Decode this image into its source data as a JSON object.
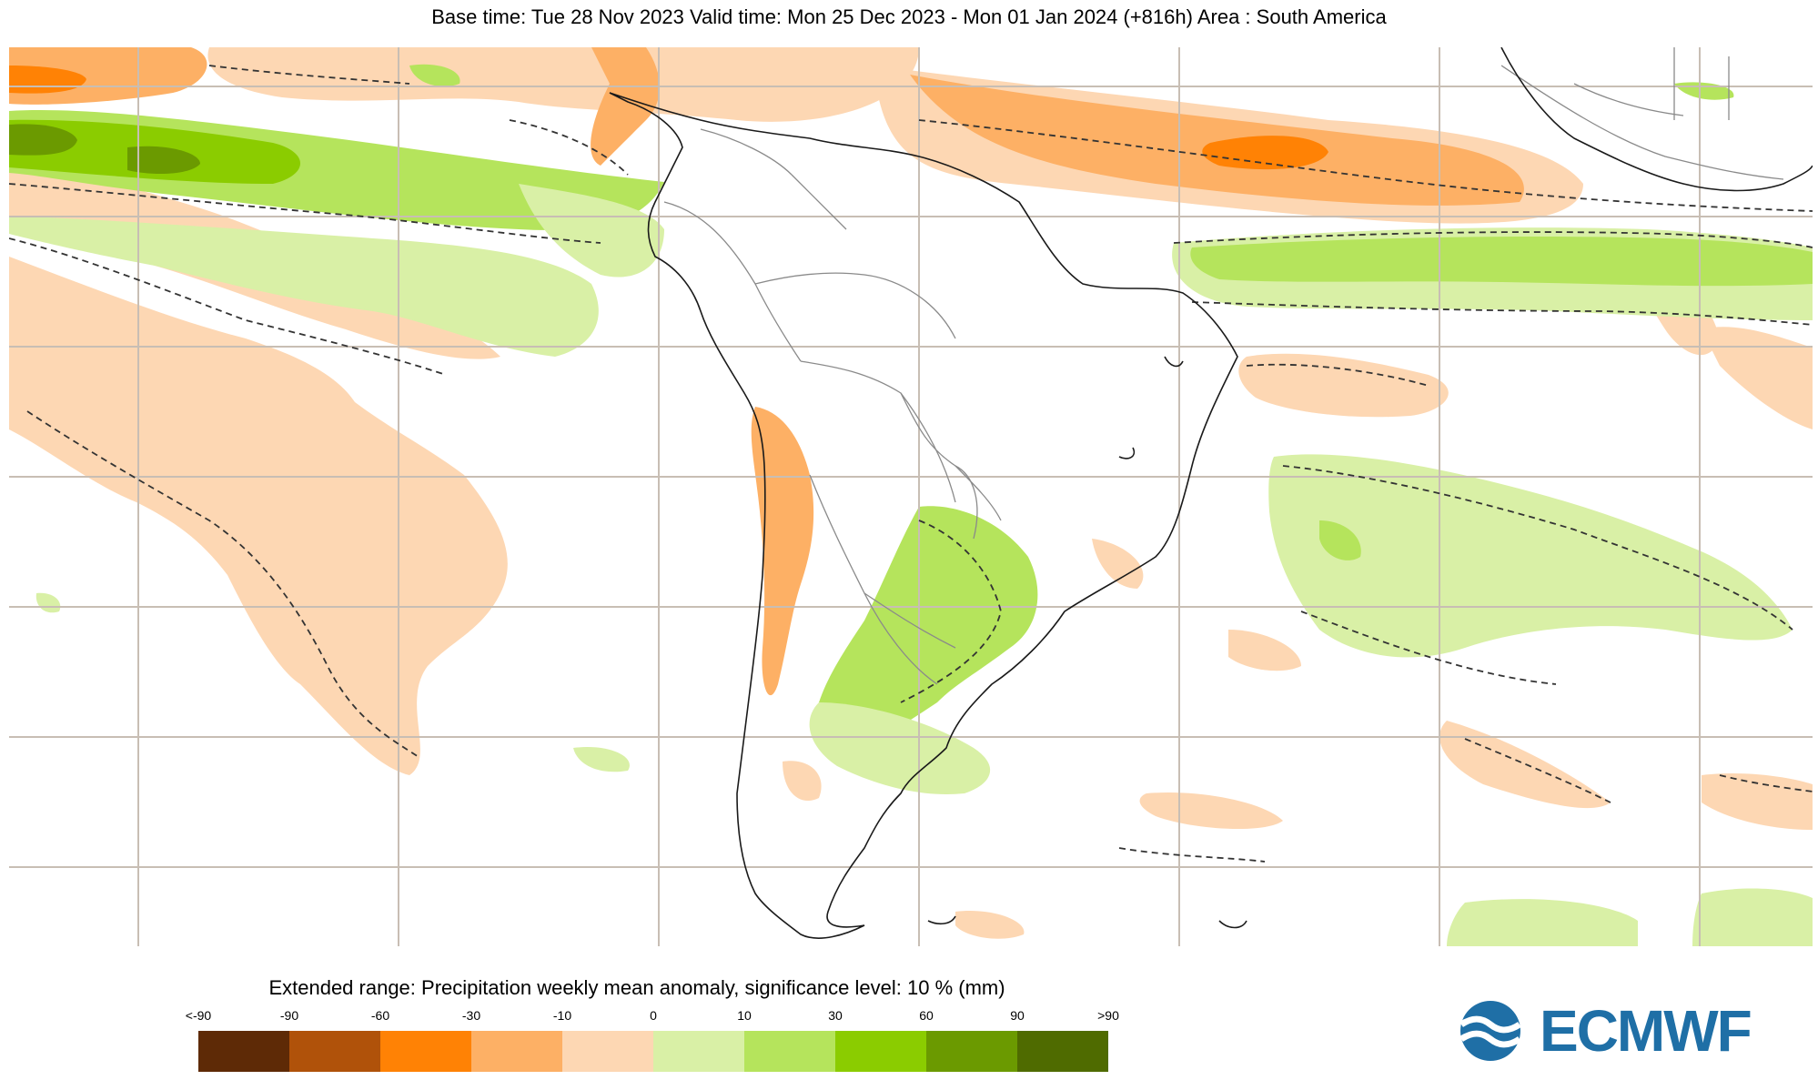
{
  "header": {
    "title": "Base time: Tue 28 Nov 2023 Valid time: Mon 25 Dec 2023 - Mon 01 Jan 2024 (+816h) Area : South America"
  },
  "map": {
    "region": "South America",
    "background_color": "#ffffff",
    "gridline_color": "#c8beb4",
    "coastline_color": "#1a1a1a",
    "border_color": "#8a8a8a",
    "significance_contour": "dashed",
    "has_gridlines": true
  },
  "legend": {
    "title": "Extended range: Precipitation weekly mean anomaly, significance level: 10 % (mm)",
    "tick_labels": [
      "<-90",
      "-90",
      "-60",
      "-30",
      "-10",
      "0",
      "10",
      "30",
      "60",
      "90",
      ">90"
    ],
    "colors": [
      "#5e2a06",
      "#b0520a",
      "#ff8205",
      "#fdb065",
      "#fdd7b3",
      "#d9f0a6",
      "#b5e45c",
      "#8bcc00",
      "#6b9a00",
      "#4f6b00"
    ]
  },
  "logo": {
    "text": "ECMWF",
    "color": "#1f6fa6",
    "icon": "ecmwf-waves-logo-icon"
  }
}
